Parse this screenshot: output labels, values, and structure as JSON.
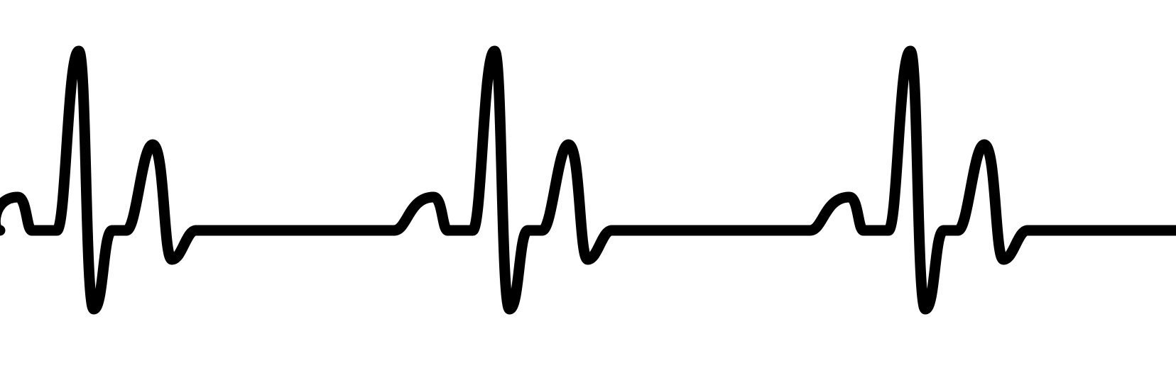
{
  "artwork": {
    "subject": "heartbeat-line",
    "beats_visible": 3,
    "colors": {
      "line": "#000000",
      "background": "#ffffff"
    }
  }
}
